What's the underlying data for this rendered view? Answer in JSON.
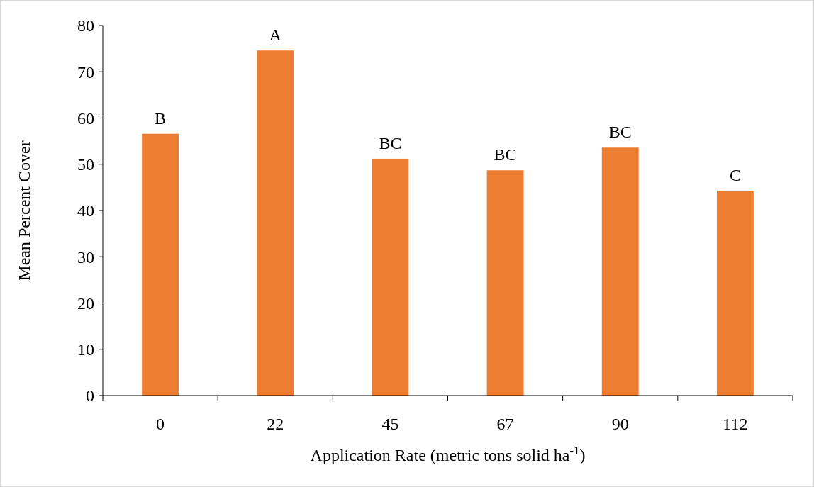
{
  "chart_data": {
    "type": "bar",
    "xlabel": "Application Rate (metric tons solid ha$^{-1}$)",
    "ylabel": "Mean Percent Cover",
    "categories": [
      "0",
      "22",
      "45",
      "67",
      "90",
      "112"
    ],
    "values": [
      56.6,
      74.6,
      51.2,
      48.7,
      53.6,
      44.3
    ],
    "color": "#ed7d31",
    "ylim": [
      0,
      80
    ],
    "yticks": [
      0,
      10,
      20,
      30,
      40,
      50,
      60,
      70,
      80
    ],
    "grid": false,
    "annotations": [
      {
        "text": "B",
        "x": "0",
        "y": 56.6
      },
      {
        "text": "A",
        "x": "22",
        "y": 74.6
      },
      {
        "text": "BC",
        "x": "45",
        "y": 51.2
      },
      {
        "text": "BC",
        "x": "67",
        "y": 48.7
      },
      {
        "text": "BC",
        "x": "90",
        "y": 53.6
      },
      {
        "text": "C",
        "x": "112",
        "y": 44.3
      }
    ]
  }
}
